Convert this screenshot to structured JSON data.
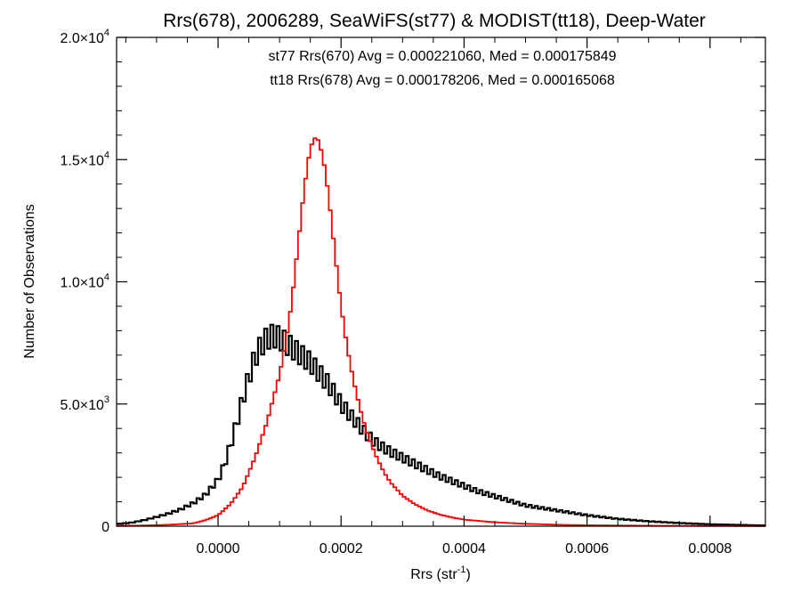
{
  "chart_data": {
    "type": "histogram",
    "title": "Rrs(678), 2006289, SeaWiFS(st77) & MODIST(tt18), Deep-Water",
    "xlabel_main": "Rrs (str",
    "xlabel_sup": "-1",
    "xlabel_close": ")",
    "ylabel": "Number of Observations",
    "xlim": [
      -0.000165,
      0.00089
    ],
    "ylim": [
      0,
      20000
    ],
    "x_ticks": [
      {
        "value": 0.0,
        "label": "0.0000"
      },
      {
        "value": 0.0002,
        "label": "0.0002"
      },
      {
        "value": 0.0004,
        "label": "0.0004"
      },
      {
        "value": 0.0006,
        "label": "0.0006"
      },
      {
        "value": 0.0008,
        "label": "0.0008"
      }
    ],
    "y_ticks": [
      {
        "value": 0,
        "mantissa": "0",
        "exp": ""
      },
      {
        "value": 5000,
        "mantissa": "5.0×10",
        "exp": "3"
      },
      {
        "value": 10000,
        "mantissa": "1.0×10",
        "exp": "4"
      },
      {
        "value": 15000,
        "mantissa": "1.5×10",
        "exp": "4"
      },
      {
        "value": 20000,
        "mantissa": "2.0×10",
        "exp": "4"
      }
    ],
    "annotations": [
      {
        "text": "st77 Rrs(670) Avg = 0.000221060, Med = 0.000175849",
        "color": "#000000"
      },
      {
        "text": "tt18 Rrs(678) Avg = 0.000178206, Med = 0.000165068",
        "color": "#ff0000"
      }
    ],
    "bin_width": 5e-06,
    "series": [
      {
        "name": "st77",
        "color": "#000000",
        "x": [
          -0.00016,
          -0.00014,
          -0.00012,
          -0.0001,
          -8e-05,
          -6e-05,
          -4e-05,
          -2e-05,
          0.0,
          1e-05,
          2e-05,
          3e-05,
          4e-05,
          5e-05,
          6e-05,
          7e-05,
          8e-05,
          9e-05,
          0.0001,
          0.00011,
          0.00012,
          0.00013,
          0.00014,
          0.00015,
          0.00016,
          0.00017,
          0.00018,
          0.00019,
          0.0002,
          0.00021,
          0.00022,
          0.00023,
          0.00024,
          0.00025,
          0.00026,
          0.00028,
          0.0003,
          0.00032,
          0.00034,
          0.00036,
          0.00038,
          0.0004,
          0.00042,
          0.00044,
          0.00046,
          0.00048,
          0.0005,
          0.00055,
          0.0006,
          0.00065,
          0.0007,
          0.00075,
          0.0008,
          0.00085,
          0.00089
        ],
        "y": [
          100,
          150,
          250,
          380,
          520,
          700,
          950,
          1300,
          1900,
          2500,
          3300,
          4200,
          5200,
          6100,
          6900,
          7400,
          7700,
          7800,
          7700,
          7500,
          7300,
          7100,
          6900,
          6700,
          6400,
          6100,
          5800,
          5400,
          5000,
          4700,
          4400,
          4100,
          3800,
          3550,
          3350,
          3050,
          2800,
          2550,
          2300,
          2050,
          1850,
          1650,
          1450,
          1300,
          1150,
          1000,
          850,
          650,
          450,
          300,
          200,
          130,
          80,
          50,
          30
        ]
      },
      {
        "name": "tt18",
        "color": "#ff0000",
        "x": [
          -0.00016,
          -0.00012,
          -8e-05,
          -4e-05,
          -2e-05,
          0.0,
          2e-05,
          4e-05,
          6e-05,
          8e-05,
          0.0001,
          0.00011,
          0.00012,
          0.00013,
          0.00014,
          0.00015,
          0.00016,
          0.00017,
          0.00018,
          0.00019,
          0.0002,
          0.00021,
          0.00022,
          0.00023,
          0.00024,
          0.00025,
          0.00026,
          0.00027,
          0.00028,
          0.0003,
          0.00032,
          0.00034,
          0.00036,
          0.00038,
          0.0004,
          0.00045,
          0.0005,
          0.00055,
          0.0006,
          0.0007,
          0.0008,
          0.00089
        ],
        "y": [
          20,
          30,
          60,
          120,
          250,
          450,
          900,
          1600,
          2800,
          4300,
          6200,
          7500,
          9200,
          11500,
          13800,
          15500,
          16000,
          15200,
          13500,
          11200,
          9000,
          7300,
          6000,
          4900,
          4000,
          3300,
          2700,
          2200,
          1800,
          1250,
          900,
          650,
          480,
          360,
          270,
          160,
          100,
          60,
          40,
          20,
          10,
          5
        ]
      }
    ]
  }
}
